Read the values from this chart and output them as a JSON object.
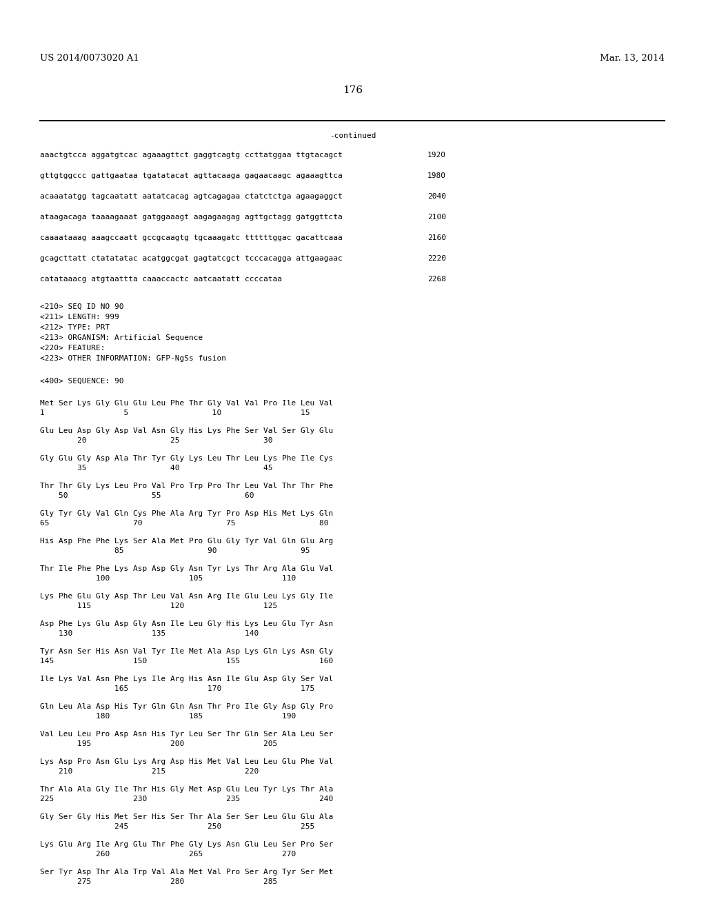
{
  "header_left": "US 2014/0073020 A1",
  "header_right": "Mar. 13, 2014",
  "page_number": "176",
  "continued_label": "-continued",
  "background_color": "#ffffff",
  "text_color": "#000000",
  "font_size_header": 9.5,
  "font_size_body": 8.0,
  "font_size_page": 11,
  "sequence_lines": [
    [
      "aaactgtcca aggatgtcac agaaagttct gaggtcagtg ccttatggaa ttgtacagct",
      "1920"
    ],
    [
      "gttgtggccc gattgaataa tgatatacat agttacaaga gagaacaagc agaaagttca",
      "1980"
    ],
    [
      "acaaatatgg tagcaatatt aatatcacag agtcagagaa ctatctctga agaagaggct",
      "2040"
    ],
    [
      "ataagacaga taaaagaaat gatggaaagt aagagaagag agttgctagg gatggttcta",
      "2100"
    ],
    [
      "caaaataaag aaagccaatt gccgcaagtg tgcaaagatc ttttttggac gacattcaaa",
      "2160"
    ],
    [
      "gcagcttatt ctatatatac acatggcgat gagtatcgct tcccacagga attgaagaac",
      "2220"
    ],
    [
      "catataaacg atgtaattta caaaccactc aatcaatatt ccccataa",
      "2268"
    ]
  ],
  "metadata_lines": [
    "<210> SEQ ID NO 90",
    "<211> LENGTH: 999",
    "<212> TYPE: PRT",
    "<213> ORGANISM: Artificial Sequence",
    "<220> FEATURE:",
    "<223> OTHER INFORMATION: GFP-NgSs fusion"
  ],
  "sequence_label": "<400> SEQUENCE: 90",
  "amino_acid_blocks": [
    {
      "sequence": "Met Ser Lys Gly Glu Glu Leu Phe Thr Gly Val Val Pro Ile Leu Val",
      "numbers": "1                 5                  10                 15"
    },
    {
      "sequence": "Glu Leu Asp Gly Asp Val Asn Gly His Lys Phe Ser Val Ser Gly Glu",
      "numbers": "        20                  25                  30"
    },
    {
      "sequence": "Gly Glu Gly Asp Ala Thr Tyr Gly Lys Leu Thr Leu Lys Phe Ile Cys",
      "numbers": "        35                  40                  45"
    },
    {
      "sequence": "Thr Thr Gly Lys Leu Pro Val Pro Trp Pro Thr Leu Val Thr Thr Phe",
      "numbers": "    50                  55                  60"
    },
    {
      "sequence": "Gly Tyr Gly Val Gln Cys Phe Ala Arg Tyr Pro Asp His Met Lys Gln",
      "numbers": "65                  70                  75                  80"
    },
    {
      "sequence": "His Asp Phe Phe Lys Ser Ala Met Pro Glu Gly Tyr Val Gln Glu Arg",
      "numbers": "                85                  90                  95"
    },
    {
      "sequence": "Thr Ile Phe Phe Lys Asp Asp Gly Asn Tyr Lys Thr Arg Ala Glu Val",
      "numbers": "            100                 105                 110"
    },
    {
      "sequence": "Lys Phe Glu Gly Asp Thr Leu Val Asn Arg Ile Glu Leu Lys Gly Ile",
      "numbers": "        115                 120                 125"
    },
    {
      "sequence": "Asp Phe Lys Glu Asp Gly Asn Ile Leu Gly His Lys Leu Glu Tyr Asn",
      "numbers": "    130                 135                 140"
    },
    {
      "sequence": "Tyr Asn Ser His Asn Val Tyr Ile Met Ala Asp Lys Gln Lys Asn Gly",
      "numbers": "145                 150                 155                 160"
    },
    {
      "sequence": "Ile Lys Val Asn Phe Lys Ile Arg His Asn Ile Glu Asp Gly Ser Val",
      "numbers": "                165                 170                 175"
    },
    {
      "sequence": "Gln Leu Ala Asp His Tyr Gln Gln Asn Thr Pro Ile Gly Asp Gly Pro",
      "numbers": "            180                 185                 190"
    },
    {
      "sequence": "Val Leu Leu Pro Asp Asn His Tyr Leu Ser Thr Gln Ser Ala Leu Ser",
      "numbers": "        195                 200                 205"
    },
    {
      "sequence": "Lys Asp Pro Asn Glu Lys Arg Asp His Met Val Leu Leu Glu Phe Val",
      "numbers": "    210                 215                 220"
    },
    {
      "sequence": "Thr Ala Ala Gly Ile Thr His Gly Met Asp Glu Leu Tyr Lys Thr Ala",
      "numbers": "225                 230                 235                 240"
    },
    {
      "sequence": "Gly Ser Gly His Met Ser His Ser Thr Ala Ser Ser Leu Glu Glu Ala",
      "numbers": "                245                 250                 255"
    },
    {
      "sequence": "Lys Glu Arg Ile Arg Glu Thr Phe Gly Lys Asn Glu Leu Ser Pro Ser",
      "numbers": "            260                 265                 270"
    },
    {
      "sequence": "Ser Tyr Asp Thr Ala Trp Val Ala Met Val Pro Ser Arg Tyr Ser Met",
      "numbers": "        275                 280                 285"
    }
  ]
}
